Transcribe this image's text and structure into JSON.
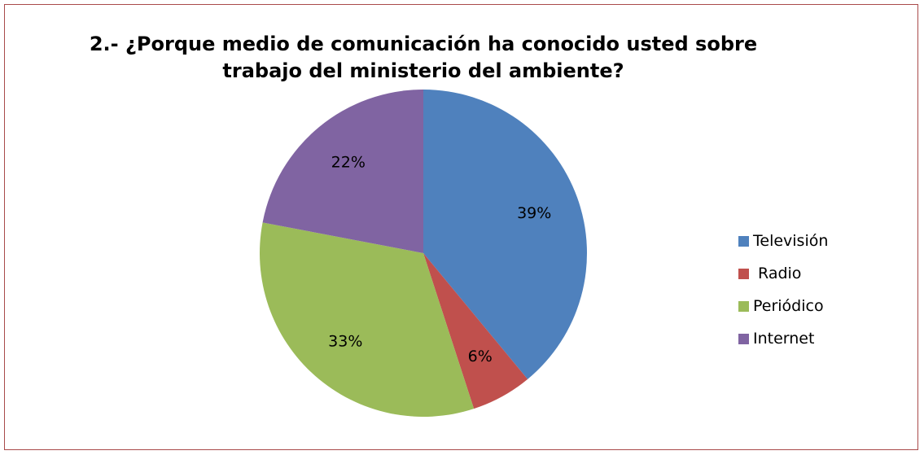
{
  "chart_data": {
    "type": "pie",
    "title_lines": [
      "2.- ¿Porque medio de comunicación ha conocido usted sobre",
      "trabajo del ministerio del ambiente?"
    ],
    "categories": [
      "Televisión",
      " Radio",
      "Periódico",
      "Internet"
    ],
    "values": [
      39,
      6,
      33,
      22
    ],
    "labels": [
      "39%",
      "6%",
      "33%",
      "22%"
    ],
    "colors": [
      "#4f81bd",
      "#c0504d",
      "#9bbb59",
      "#8064a2"
    ],
    "start_angle_deg": 0,
    "direction": "clockwise",
    "legend_placement": "right"
  }
}
